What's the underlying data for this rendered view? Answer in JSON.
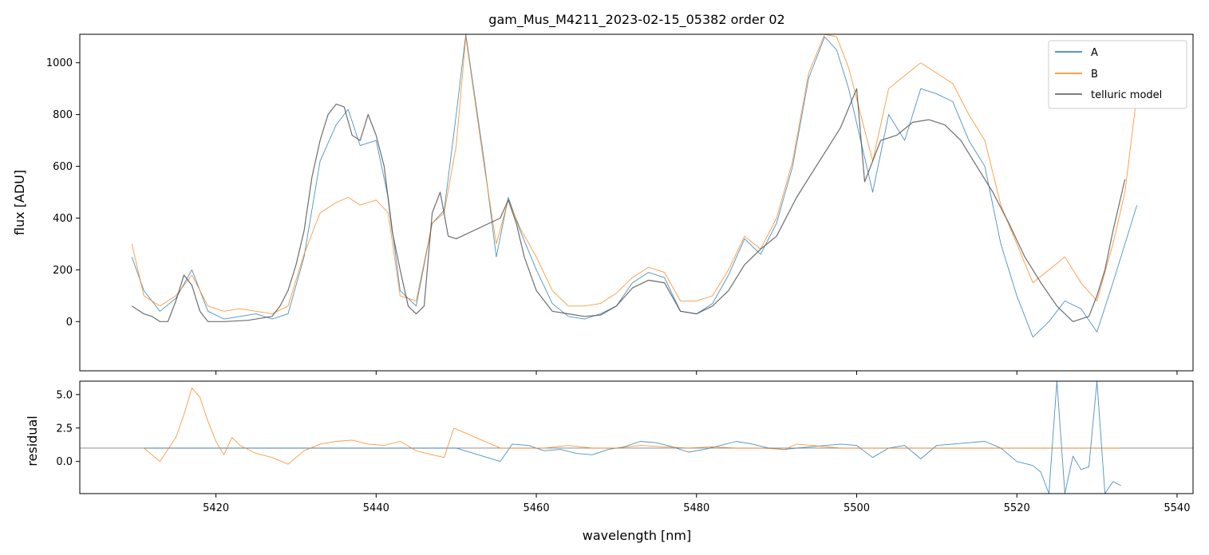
{
  "chart_data": [
    {
      "type": "line",
      "title": "gam_Mus_M4211_2023-02-15_05382  order 02",
      "xlabel": "",
      "ylabel": "flux [ADU]",
      "xlim": [
        5403,
        5542
      ],
      "ylim": [
        -190,
        1110
      ],
      "yticks": [
        0,
        200,
        400,
        600,
        800,
        1000
      ],
      "ytick_labels": [
        "0",
        "200",
        "400",
        "600",
        "800",
        "1000"
      ],
      "legend": {
        "position": "top-right",
        "entries": [
          "A",
          "B",
          "telluric model"
        ]
      },
      "series": [
        {
          "name": "A",
          "color": "#1f77b4",
          "x": [
            5409.5,
            5411,
            5413,
            5415,
            5417,
            5419,
            5421,
            5423,
            5425,
            5427,
            5429,
            5431,
            5433,
            5435,
            5436.5,
            5438,
            5440,
            5441.5,
            5443,
            5445,
            5447,
            5448.5,
            5450,
            5451.2,
            5453.5,
            5455,
            5456.5,
            5458,
            5460,
            5462,
            5464,
            5466,
            5468,
            5470,
            5472,
            5474,
            5476,
            5478,
            5480,
            5482,
            5484,
            5486,
            5488,
            5490,
            5492,
            5494,
            5496,
            5497.5,
            5499,
            5500.5,
            5502,
            5504,
            5506,
            5508,
            5510,
            5512,
            5514,
            5516,
            5518,
            5520,
            5522,
            5524,
            5526,
            5528,
            5530,
            5532,
            5533.5,
            5535
          ],
          "values": [
            250,
            120,
            40,
            90,
            200,
            40,
            10,
            20,
            30,
            10,
            30,
            250,
            620,
            760,
            820,
            680,
            700,
            480,
            120,
            60,
            380,
            430,
            800,
            1110,
            620,
            250,
            480,
            350,
            200,
            70,
            20,
            10,
            30,
            60,
            150,
            190,
            170,
            40,
            30,
            70,
            180,
            320,
            260,
            380,
            600,
            940,
            1100,
            1050,
            900,
            700,
            500,
            800,
            700,
            900,
            880,
            850,
            700,
            600,
            300,
            100,
            -60,
            0,
            80,
            50,
            -40,
            150,
            300,
            450
          ]
        },
        {
          "name": "B",
          "color": "#ff7f0e",
          "x": [
            5409.5,
            5411,
            5413,
            5415,
            5417,
            5419,
            5421,
            5423,
            5425,
            5427,
            5429,
            5431,
            5433,
            5435,
            5436.5,
            5438,
            5440,
            5441.5,
            5443,
            5445,
            5447,
            5448.5,
            5450,
            5451.2,
            5453.5,
            5455,
            5456.5,
            5458,
            5460,
            5462,
            5464,
            5466,
            5468,
            5470,
            5472,
            5474,
            5476,
            5478,
            5480,
            5482,
            5484,
            5486,
            5488,
            5490,
            5492,
            5494,
            5496,
            5497.5,
            5499,
            5500.5,
            5502,
            5504,
            5506,
            5508,
            5510,
            5512,
            5514,
            5516,
            5518,
            5520,
            5522,
            5524,
            5526,
            5528,
            5530,
            5532,
            5533.5,
            5535
          ],
          "values": [
            300,
            100,
            60,
            100,
            180,
            60,
            40,
            50,
            40,
            30,
            60,
            260,
            420,
            460,
            480,
            450,
            470,
            420,
            100,
            80,
            380,
            420,
            680,
            1100,
            600,
            300,
            470,
            360,
            250,
            120,
            60,
            60,
            70,
            110,
            170,
            210,
            190,
            80,
            80,
            100,
            200,
            330,
            280,
            400,
            620,
            960,
            1110,
            1100,
            980,
            800,
            620,
            900,
            950,
            1000,
            960,
            920,
            800,
            700,
            450,
            300,
            150,
            200,
            250,
            150,
            80,
            300,
            500,
            880
          ]
        },
        {
          "name": "telluric model",
          "color": "#555555",
          "x": [
            5409.5,
            5411,
            5412,
            5413,
            5414,
            5415,
            5416,
            5417,
            5418,
            5419,
            5421,
            5424,
            5427,
            5428,
            5429,
            5430,
            5431,
            5432,
            5433,
            5434,
            5435,
            5436,
            5437,
            5438,
            5439,
            5440,
            5441,
            5442,
            5443,
            5444,
            5445,
            5446,
            5447,
            5448,
            5449,
            5450,
            5455.5,
            5456.5,
            5457.5,
            5458.5,
            5460,
            5462,
            5464,
            5466,
            5468,
            5470,
            5472,
            5474,
            5476,
            5478,
            5480,
            5482,
            5484,
            5486,
            5488,
            5490,
            5492.5,
            5498,
            5500,
            5501,
            5503,
            5505,
            5507,
            5509,
            5511,
            5513,
            5515,
            5517,
            5519,
            5521,
            5523,
            5525,
            5527,
            5529,
            5530,
            5531,
            5532,
            5533.5
          ],
          "values": [
            60,
            30,
            20,
            0,
            0,
            80,
            180,
            140,
            40,
            0,
            0,
            5,
            20,
            60,
            120,
            220,
            350,
            560,
            700,
            800,
            840,
            830,
            720,
            700,
            800,
            720,
            600,
            350,
            200,
            60,
            30,
            60,
            420,
            500,
            330,
            320,
            400,
            470,
            380,
            250,
            120,
            40,
            30,
            20,
            25,
            60,
            130,
            160,
            150,
            40,
            30,
            60,
            120,
            220,
            280,
            330,
            480,
            750,
            900,
            540,
            700,
            720,
            770,
            780,
            760,
            700,
            600,
            500,
            380,
            250,
            150,
            60,
            0,
            20,
            100,
            200,
            350,
            550
          ]
        }
      ]
    },
    {
      "type": "line",
      "title": "",
      "xlabel": "wavelength [nm]",
      "ylabel": "residual",
      "xlim": [
        5403,
        5542
      ],
      "ylim": [
        -2.4,
        6.0
      ],
      "xticks": [
        5420,
        5440,
        5460,
        5480,
        5500,
        5520,
        5540
      ],
      "xtick_labels": [
        "5420",
        "5440",
        "5460",
        "5480",
        "5500",
        "5520",
        "5540"
      ],
      "yticks": [
        0.0,
        2.5,
        5.0
      ],
      "ytick_labels": [
        "0.0",
        "2.5",
        "5.0"
      ],
      "reference_line": 1.0,
      "series": [
        {
          "name": "A",
          "color": "#1f77b4",
          "x": [
            5411,
            5415,
            5420,
            5425,
            5430,
            5435,
            5440,
            5445,
            5450,
            5455.5,
            5457,
            5459,
            5461,
            5463,
            5465,
            5467,
            5469,
            5471,
            5473,
            5475,
            5477,
            5479,
            5481,
            5483,
            5485,
            5487,
            5489,
            5491,
            5492.5,
            5498,
            5500,
            5502,
            5504,
            5506,
            5508,
            5510,
            5512,
            5514,
            5516,
            5518,
            5520,
            5522,
            5523,
            5524,
            5525,
            5526,
            5527,
            5528,
            5529,
            5530,
            5531,
            5532,
            5533
          ],
          "values": [
            1.0,
            1.0,
            1.0,
            1.0,
            1.0,
            1.0,
            1.0,
            1.0,
            1.0,
            0.0,
            1.3,
            1.2,
            0.8,
            0.9,
            0.6,
            0.5,
            0.9,
            1.1,
            1.5,
            1.4,
            1.1,
            0.7,
            0.9,
            1.2,
            1.5,
            1.3,
            1.0,
            0.9,
            1.0,
            1.3,
            1.2,
            0.3,
            1.0,
            1.2,
            0.2,
            1.2,
            1.3,
            1.4,
            1.5,
            1.0,
            0.0,
            -0.3,
            -0.8,
            -2.4,
            6.0,
            -2.4,
            0.4,
            -0.6,
            -0.4,
            6.0,
            -2.4,
            -1.5,
            -1.8
          ]
        },
        {
          "name": "B",
          "color": "#ff7f0e",
          "x": [
            5411,
            5413,
            5415,
            5416,
            5417,
            5418,
            5419,
            5420,
            5421,
            5422,
            5423,
            5425,
            5427,
            5429,
            5431,
            5433,
            5435,
            5437,
            5439,
            5441,
            5443,
            5445,
            5447,
            5448.5,
            5449.7,
            5455.5,
            5458,
            5461,
            5464,
            5467,
            5470,
            5473,
            5476,
            5479,
            5482,
            5485,
            5488,
            5491,
            5492.5,
            5498,
            5505,
            5512,
            5519,
            5526,
            5533
          ],
          "values": [
            1.0,
            0.0,
            1.8,
            3.5,
            5.5,
            4.8,
            3.0,
            1.5,
            0.5,
            1.8,
            1.2,
            0.6,
            0.3,
            -0.2,
            0.8,
            1.3,
            1.5,
            1.6,
            1.3,
            1.2,
            1.5,
            0.8,
            0.5,
            0.3,
            2.5,
            1.0,
            1.0,
            1.0,
            1.2,
            1.0,
            1.0,
            1.2,
            1.1,
            1.0,
            1.1,
            1.0,
            1.0,
            0.9,
            1.3,
            1.0,
            1.0,
            1.0,
            1.0,
            1.0,
            1.0
          ]
        }
      ]
    }
  ]
}
